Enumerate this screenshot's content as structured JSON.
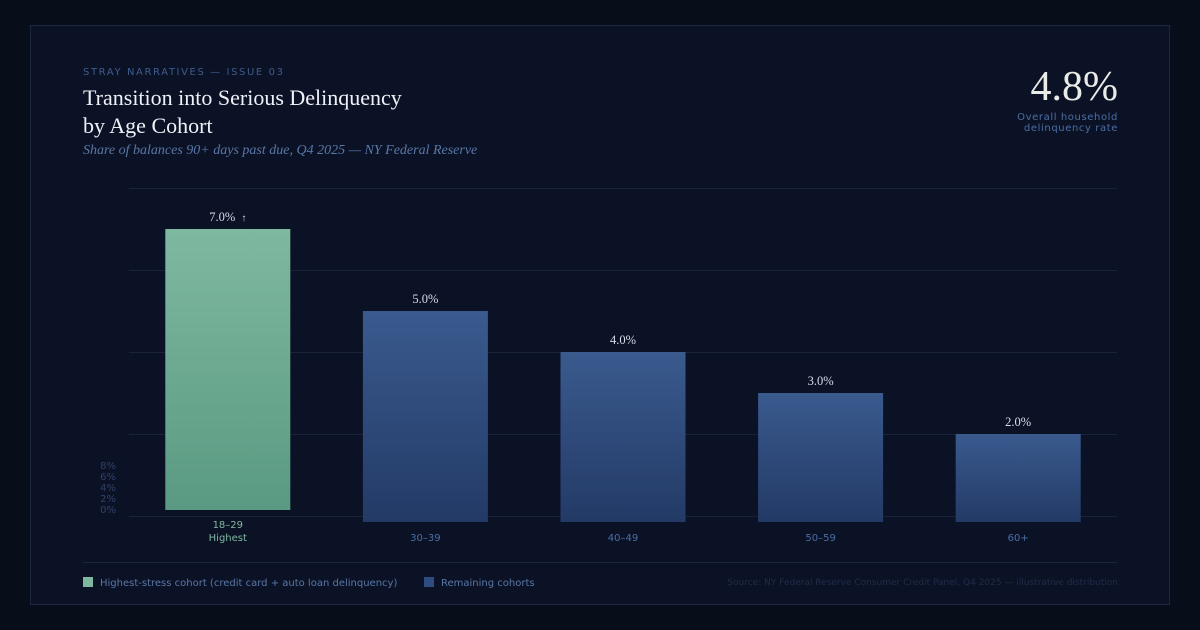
{
  "header": {
    "eyebrow": "STRAY NARRATIVES — ISSUE 03",
    "title_line1": "Transition into Serious Delinquency",
    "title_line2": "by Age Cohort",
    "subtitle": "Share of balances 90+ days past due, Q4 2025 — NY Federal Reserve"
  },
  "kpi": {
    "value": "4.8%",
    "label_line1": "Overall household",
    "label_line2": "delinquency rate"
  },
  "chart_data": {
    "type": "bar",
    "categories": [
      "18–29",
      "30–39",
      "40–49",
      "50–59",
      "60+"
    ],
    "values": [
      7.0,
      5.0,
      4.0,
      3.0,
      2.0
    ],
    "value_labels": [
      "7.0%",
      "5.0%",
      "4.0%",
      "3.0%",
      "2.0%"
    ],
    "highlight_index": 0,
    "highlight_marker": "↑",
    "highlight_sublabel": "Highest",
    "y_ticks": [
      "8%",
      "6%",
      "4%",
      "2%",
      "0%"
    ],
    "ylim": [
      0,
      8
    ],
    "grid": true,
    "colors": {
      "highlight_top": "#7fb8a0",
      "highlight_bottom": "#5a9a82",
      "base_top": "#3a5a8e",
      "base_bottom": "#233a66",
      "highlight_label": "#7fb8a0",
      "category_label": "#4a6ea5",
      "value_label": "#d6dde8",
      "tick_label": "#2e4266",
      "grid": "#18223a"
    }
  },
  "legend": {
    "highlight_label": "Highest-stress cohort (credit card + auto loan delinquency)",
    "rest_label": "Remaining cohorts",
    "highlight_color": "#7fb8a0",
    "rest_color": "#2f4c80"
  },
  "footer": {
    "source": "Source: NY Federal Reserve Consumer Credit Panel, Q4 2025 — illustrative distribution"
  }
}
